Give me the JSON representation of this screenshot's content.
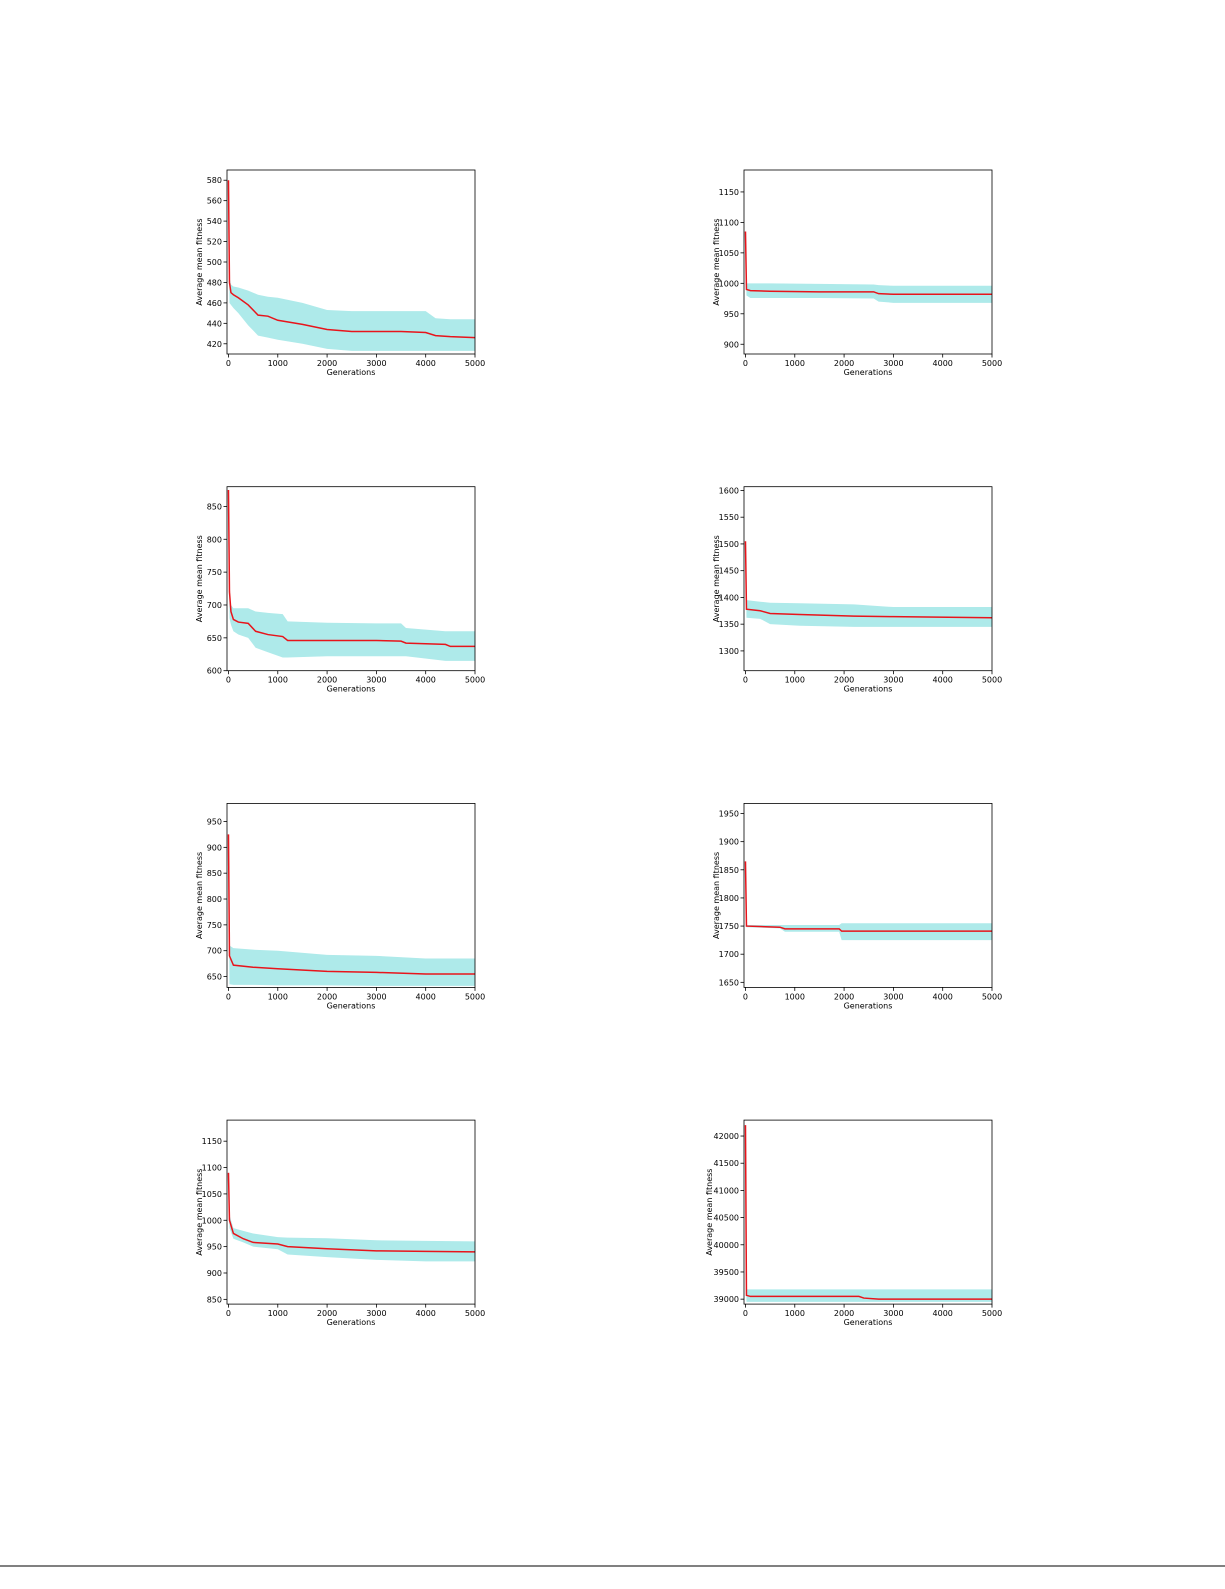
{
  "chart_data": [
    {
      "type": "line",
      "xlabel": "Generations",
      "ylabel": "Average mean fitness",
      "x": [
        0,
        20,
        50,
        100,
        200,
        400,
        600,
        800,
        1000,
        1500,
        2000,
        2500,
        3000,
        3500,
        4000,
        4200,
        4500,
        5000
      ],
      "series": [
        {
          "color": "#e8141b",
          "values": [
            580,
            480,
            470,
            468,
            465,
            458,
            448,
            447,
            443,
            439,
            434,
            432,
            432,
            432,
            431,
            428,
            427,
            426
          ]
        }
      ],
      "band": {
        "color": "#aeeaea",
        "lower": [
          560,
          460,
          458,
          455,
          450,
          438,
          428,
          426,
          424,
          420,
          415,
          413,
          413,
          413,
          413,
          413,
          413,
          413
        ],
        "upper": [
          590,
          485,
          478,
          476,
          475,
          472,
          468,
          466,
          465,
          460,
          453,
          452,
          452,
          452,
          452,
          445,
          444,
          444
        ]
      },
      "xlim": [
        -30,
        5000
      ],
      "xticks": [
        0,
        1000,
        2000,
        3000,
        4000,
        5000
      ],
      "ylim": [
        410,
        590
      ],
      "yticks": [
        420,
        440,
        460,
        480,
        500,
        520,
        540,
        560,
        580
      ]
    },
    {
      "type": "line",
      "xlabel": "Generations",
      "ylabel": "Average mean fitness",
      "x": [
        0,
        20,
        100,
        500,
        1500,
        2600,
        2700,
        3000,
        5000
      ],
      "series": [
        {
          "color": "#e8141b",
          "values": [
            1085,
            990,
            988,
            987,
            986,
            986,
            983,
            982,
            982
          ]
        }
      ],
      "band": {
        "color": "#aeeaea",
        "lower": [
          1060,
          980,
          976,
          976,
          976,
          975,
          970,
          968,
          968
        ],
        "upper": [
          1090,
          1000,
          1000,
          1000,
          999,
          998,
          997,
          996,
          996
        ]
      },
      "xlim": [
        -30,
        5000
      ],
      "xticks": [
        0,
        1000,
        2000,
        3000,
        4000,
        5000
      ],
      "ylim": [
        884,
        1186
      ],
      "yticks": [
        900,
        950,
        1000,
        1050,
        1100,
        1150
      ]
    },
    {
      "type": "line",
      "xlabel": "Generations",
      "ylabel": "Average mean fitness",
      "x": [
        0,
        20,
        50,
        100,
        200,
        400,
        550,
        800,
        1100,
        1200,
        2000,
        3000,
        3500,
        3600,
        4400,
        4500,
        5000
      ],
      "series": [
        {
          "color": "#e8141b",
          "values": [
            875,
            720,
            690,
            678,
            674,
            672,
            660,
            655,
            652,
            646,
            646,
            646,
            645,
            642,
            640,
            637,
            637
          ]
        }
      ],
      "band": {
        "color": "#aeeaea",
        "lower": [
          860,
          680,
          670,
          660,
          655,
          650,
          635,
          628,
          620,
          620,
          622,
          622,
          622,
          622,
          615,
          615,
          615
        ],
        "upper": [
          880,
          710,
          700,
          695,
          695,
          695,
          690,
          688,
          686,
          675,
          673,
          672,
          672,
          665,
          660,
          660,
          660
        ]
      },
      "xlim": [
        -30,
        5000
      ],
      "xticks": [
        0,
        1000,
        2000,
        3000,
        4000,
        5000
      ],
      "ylim": [
        600,
        880
      ],
      "yticks": [
        600,
        650,
        700,
        750,
        800,
        850
      ]
    },
    {
      "type": "line",
      "xlabel": "Generations",
      "ylabel": "Average mean fitness",
      "x": [
        0,
        20,
        300,
        500,
        1100,
        2200,
        3000,
        5000
      ],
      "series": [
        {
          "color": "#e8141b",
          "values": [
            1505,
            1378,
            1375,
            1370,
            1368,
            1365,
            1364,
            1362
          ]
        }
      ],
      "band": {
        "color": "#aeeaea",
        "lower": [
          1480,
          1362,
          1360,
          1350,
          1347,
          1345,
          1345,
          1345
        ],
        "upper": [
          1510,
          1395,
          1392,
          1390,
          1389,
          1387,
          1382,
          1382
        ]
      },
      "xlim": [
        -30,
        5000
      ],
      "xticks": [
        0,
        1000,
        2000,
        3000,
        4000,
        5000
      ],
      "ylim": [
        1263,
        1607
      ],
      "yticks": [
        1300,
        1350,
        1400,
        1450,
        1500,
        1550,
        1600
      ]
    },
    {
      "type": "line",
      "xlabel": "Generations",
      "ylabel": "Average mean fitness",
      "x": [
        0,
        20,
        100,
        500,
        1000,
        2000,
        3000,
        4000,
        5000
      ],
      "series": [
        {
          "color": "#e8141b",
          "values": [
            925,
            690,
            672,
            668,
            665,
            660,
            658,
            655,
            655
          ]
        }
      ],
      "band": {
        "color": "#aeeaea",
        "lower": [
          900,
          635,
          634,
          634,
          633,
          633,
          632,
          632,
          632
        ],
        "upper": [
          930,
          710,
          705,
          702,
          700,
          692,
          690,
          685,
          685
        ]
      },
      "xlim": [
        -30,
        5000
      ],
      "xticks": [
        0,
        1000,
        2000,
        3000,
        4000,
        5000
      ],
      "ylim": [
        629,
        985
      ],
      "yticks": [
        650,
        700,
        750,
        800,
        850,
        900,
        950
      ]
    },
    {
      "type": "line",
      "xlabel": "Generations",
      "ylabel": "Average mean fitness",
      "x": [
        0,
        20,
        700,
        800,
        1900,
        1950,
        5000
      ],
      "series": [
        {
          "color": "#e8141b",
          "values": [
            1865,
            1750,
            1748,
            1745,
            1745,
            1741,
            1741
          ]
        }
      ],
      "band": {
        "color": "#aeeaea",
        "lower": [
          1860,
          1748,
          1746,
          1740,
          1740,
          1725,
          1725
        ],
        "upper": [
          1870,
          1752,
          1752,
          1752,
          1752,
          1755,
          1755
        ]
      },
      "xlim": [
        -30,
        5000
      ],
      "xticks": [
        0,
        1000,
        2000,
        3000,
        4000,
        5000
      ],
      "ylim": [
        1641,
        1968
      ],
      "yticks": [
        1650,
        1700,
        1750,
        1800,
        1850,
        1900,
        1950
      ]
    },
    {
      "type": "line",
      "xlabel": "Generations",
      "ylabel": "Average mean fitness",
      "x": [
        0,
        20,
        100,
        300,
        500,
        1000,
        1200,
        2000,
        3000,
        4000,
        5000
      ],
      "series": [
        {
          "color": "#e8141b",
          "values": [
            1090,
            1000,
            975,
            965,
            958,
            955,
            950,
            946,
            942,
            941,
            940
          ]
        }
      ],
      "band": {
        "color": "#aeeaea",
        "lower": [
          1080,
          985,
          965,
          958,
          950,
          945,
          935,
          930,
          925,
          922,
          922
        ],
        "upper": [
          1100,
          1010,
          985,
          980,
          975,
          968,
          967,
          966,
          962,
          961,
          960
        ]
      },
      "xlim": [
        -30,
        5000
      ],
      "xticks": [
        0,
        1000,
        2000,
        3000,
        4000,
        5000
      ],
      "ylim": [
        841,
        1190
      ],
      "yticks": [
        850,
        900,
        950,
        1000,
        1050,
        1100,
        1150
      ]
    },
    {
      "type": "line",
      "xlabel": "Generations",
      "ylabel": "Average mean fitness",
      "x": [
        0,
        20,
        100,
        2300,
        2400,
        2700,
        5000
      ],
      "series": [
        {
          "color": "#e8141b",
          "values": [
            42200,
            39070,
            39050,
            39050,
            39020,
            39000,
            39000
          ]
        }
      ],
      "band": {
        "color": "#aeeaea",
        "lower": [
          42150,
          38950,
          38950,
          38950,
          38950,
          38950,
          38950
        ],
        "upper": [
          42250,
          39180,
          39180,
          39180,
          39180,
          39180,
          39180
        ]
      },
      "xlim": [
        -30,
        5000
      ],
      "xticks": [
        0,
        1000,
        2000,
        3000,
        4000,
        5000
      ],
      "ylim": [
        38909,
        42293
      ],
      "yticks": [
        39000,
        39500,
        40000,
        40500,
        41000,
        41500,
        42000
      ]
    }
  ]
}
